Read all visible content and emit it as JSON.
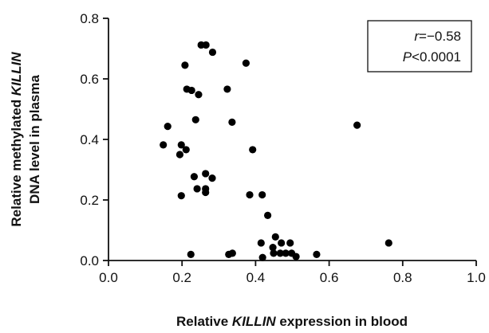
{
  "chart_data": {
    "type": "scatter",
    "title": "",
    "xlabel": [
      "Relative ",
      "KILLIN",
      " expression in blood"
    ],
    "ylabel_line1": [
      "Relative  methylated ",
      "KILLIN"
    ],
    "ylabel_line2": "DNA level in plasma",
    "xlim": [
      0.0,
      1.0
    ],
    "ylim": [
      0.0,
      0.8
    ],
    "xticks": [
      "0.0",
      "0.2",
      "0.4",
      "0.6",
      "0.8",
      "1.0"
    ],
    "yticks": [
      "0.0",
      "0.2",
      "0.4",
      "0.6",
      "0.8"
    ],
    "grid": false,
    "annotation": {
      "line1_italic": "r",
      "line1_rest": "=−0.58",
      "line2_italic": "P",
      "line2_rest": "<0.0001",
      "placement": "top-right"
    },
    "points": [
      [
        0.252,
        0.712
      ],
      [
        0.265,
        0.712
      ],
      [
        0.283,
        0.688
      ],
      [
        0.374,
        0.652
      ],
      [
        0.208,
        0.645
      ],
      [
        0.213,
        0.566
      ],
      [
        0.226,
        0.562
      ],
      [
        0.245,
        0.548
      ],
      [
        0.323,
        0.566
      ],
      [
        0.237,
        0.465
      ],
      [
        0.336,
        0.457
      ],
      [
        0.161,
        0.443
      ],
      [
        0.676,
        0.447
      ],
      [
        0.149,
        0.382
      ],
      [
        0.198,
        0.382
      ],
      [
        0.211,
        0.366
      ],
      [
        0.392,
        0.366
      ],
      [
        0.194,
        0.35
      ],
      [
        0.264,
        0.287
      ],
      [
        0.282,
        0.272
      ],
      [
        0.233,
        0.277
      ],
      [
        0.241,
        0.237
      ],
      [
        0.264,
        0.237
      ],
      [
        0.264,
        0.225
      ],
      [
        0.198,
        0.214
      ],
      [
        0.384,
        0.217
      ],
      [
        0.418,
        0.217
      ],
      [
        0.433,
        0.149
      ],
      [
        0.454,
        0.078
      ],
      [
        0.415,
        0.058
      ],
      [
        0.47,
        0.058
      ],
      [
        0.494,
        0.058
      ],
      [
        0.762,
        0.058
      ],
      [
        0.447,
        0.043
      ],
      [
        0.467,
        0.024
      ],
      [
        0.482,
        0.024
      ],
      [
        0.498,
        0.024
      ],
      [
        0.51,
        0.013
      ],
      [
        0.566,
        0.02
      ],
      [
        0.449,
        0.024
      ],
      [
        0.419,
        0.01
      ],
      [
        0.327,
        0.02
      ],
      [
        0.337,
        0.024
      ],
      [
        0.224,
        0.02
      ]
    ]
  }
}
